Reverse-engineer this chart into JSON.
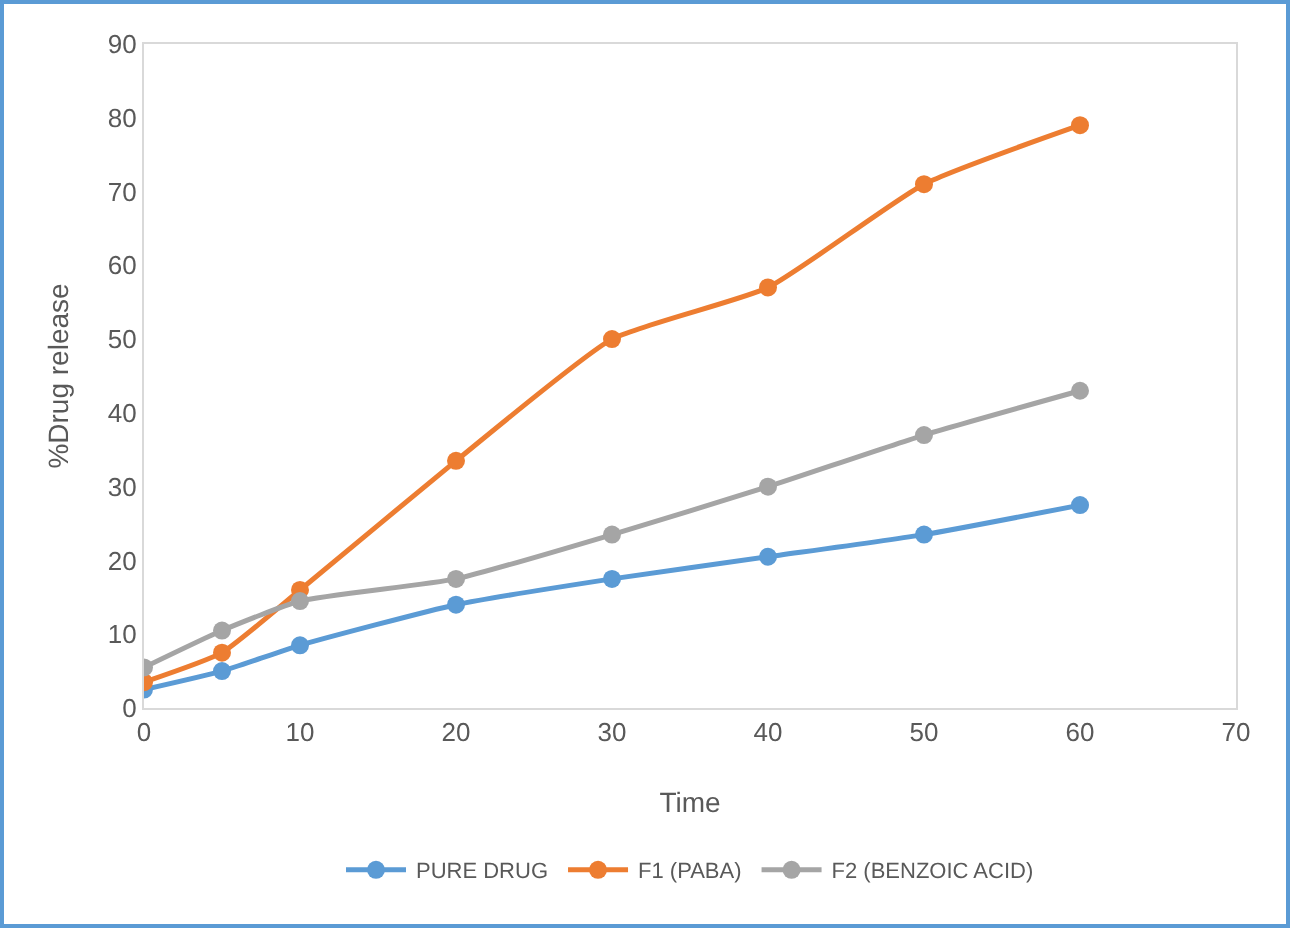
{
  "chart_data": {
    "type": "line",
    "xlabel": "Time",
    "ylabel": "%Drug release",
    "x": [
      0,
      5,
      10,
      20,
      30,
      40,
      50,
      60
    ],
    "series": [
      {
        "name": "PURE DRUG",
        "color": "#5b9bd5",
        "values": [
          2.5,
          5,
          8.5,
          14,
          17.5,
          20.5,
          23.5,
          27.5
        ]
      },
      {
        "name": "F1 (PABA)",
        "color": "#ed7d31",
        "values": [
          3.5,
          7.5,
          16,
          33.5,
          50,
          57,
          71,
          79
        ]
      },
      {
        "name": "F2 (BENZOIC ACID)",
        "color": "#a5a5a5",
        "values": [
          5.5,
          10.5,
          14.5,
          17.5,
          23.5,
          30,
          37,
          43
        ]
      }
    ],
    "xlim": [
      0,
      70
    ],
    "xticks": [
      0,
      10,
      20,
      30,
      40,
      50,
      60,
      70
    ],
    "ylim": [
      0,
      90
    ],
    "yticks": [
      0,
      10,
      20,
      30,
      40,
      50,
      60,
      70,
      80,
      90
    ],
    "grid": false,
    "legend": "bottom",
    "marker": "circle",
    "line_style": "solid"
  }
}
